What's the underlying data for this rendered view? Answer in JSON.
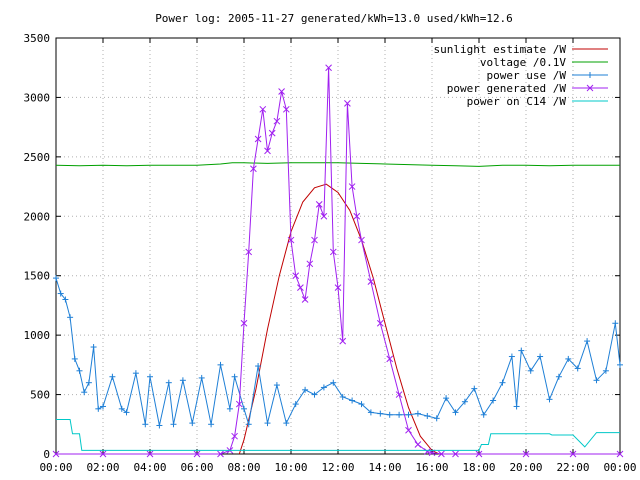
{
  "chart_data": {
    "type": "line",
    "title": "Power log: 2005-11-27 generated/kWh=13.0 used/kWh=12.6",
    "xlabel": "",
    "ylabel": "",
    "xlim": [
      0,
      24
    ],
    "ylim": [
      0,
      3500
    ],
    "grid": true,
    "legend_position": "top-right",
    "x_ticks": [
      {
        "value": 0,
        "label": "00:00"
      },
      {
        "value": 2,
        "label": "02:00"
      },
      {
        "value": 4,
        "label": "04:00"
      },
      {
        "value": 6,
        "label": "06:00"
      },
      {
        "value": 8,
        "label": "08:00"
      },
      {
        "value": 10,
        "label": "10:00"
      },
      {
        "value": 12,
        "label": "12:00"
      },
      {
        "value": 14,
        "label": "14:00"
      },
      {
        "value": 16,
        "label": "16:00"
      },
      {
        "value": 18,
        "label": "18:00"
      },
      {
        "value": 20,
        "label": "20:00"
      },
      {
        "value": 22,
        "label": "22:00"
      },
      {
        "value": 24,
        "label": "00:00"
      }
    ],
    "y_ticks": [
      {
        "value": 0,
        "label": "0"
      },
      {
        "value": 500,
        "label": "500"
      },
      {
        "value": 1000,
        "label": "1000"
      },
      {
        "value": 1500,
        "label": "1500"
      },
      {
        "value": 2000,
        "label": "2000"
      },
      {
        "value": 2500,
        "label": "2500"
      },
      {
        "value": 3000,
        "label": "3000"
      },
      {
        "value": 3500,
        "label": "3500"
      }
    ],
    "series": [
      {
        "name": "sunlight estimate /W",
        "color": "#c00000",
        "style": "line",
        "x": [
          7.8,
          8.0,
          8.5,
          9.0,
          9.5,
          10.0,
          10.5,
          11.0,
          11.5,
          12.0,
          12.5,
          13.0,
          13.5,
          14.0,
          14.5,
          15.0,
          15.5,
          16.0,
          16.3
        ],
        "y": [
          0,
          120,
          540,
          1050,
          1500,
          1870,
          2120,
          2240,
          2270,
          2200,
          2050,
          1800,
          1480,
          1100,
          720,
          390,
          150,
          30,
          0
        ]
      },
      {
        "name": "voltage /0.1V",
        "color": "#00a000",
        "style": "line",
        "x": [
          0,
          1,
          2,
          3,
          4,
          5,
          6,
          7,
          7.5,
          8,
          9,
          10,
          11,
          12,
          13,
          14,
          15,
          16,
          17,
          18,
          19,
          20,
          21,
          22,
          23,
          24
        ],
        "y": [
          2430,
          2425,
          2430,
          2425,
          2430,
          2430,
          2430,
          2440,
          2450,
          2450,
          2445,
          2450,
          2450,
          2450,
          2445,
          2440,
          2435,
          2430,
          2425,
          2420,
          2430,
          2430,
          2425,
          2430,
          2430,
          2430
        ]
      },
      {
        "name": "power use /W",
        "color": "#1e7fd6",
        "style": "line+plus",
        "x": [
          0,
          0.2,
          0.4,
          0.6,
          0.8,
          1.0,
          1.2,
          1.4,
          1.6,
          1.8,
          2.0,
          2.4,
          2.8,
          3.0,
          3.4,
          3.8,
          4.0,
          4.4,
          4.8,
          5.0,
          5.4,
          5.8,
          6.2,
          6.6,
          7.0,
          7.4,
          7.6,
          8.0,
          8.2,
          8.6,
          9.0,
          9.4,
          9.8,
          10.2,
          10.6,
          11.0,
          11.4,
          11.8,
          12.2,
          12.6,
          13.0,
          13.4,
          13.8,
          14.2,
          14.6,
          15.0,
          15.4,
          15.8,
          16.2,
          16.6,
          17.0,
          17.4,
          17.8,
          18.2,
          18.6,
          19.0,
          19.4,
          19.6,
          19.8,
          20.2,
          20.6,
          21.0,
          21.4,
          21.8,
          22.2,
          22.6,
          23.0,
          23.4,
          23.8,
          24.0
        ],
        "y": [
          1480,
          1350,
          1300,
          1150,
          800,
          700,
          520,
          600,
          900,
          380,
          400,
          650,
          380,
          350,
          680,
          250,
          650,
          240,
          600,
          250,
          620,
          260,
          640,
          250,
          750,
          380,
          650,
          380,
          250,
          740,
          260,
          580,
          260,
          420,
          540,
          500,
          560,
          600,
          480,
          450,
          420,
          350,
          340,
          330,
          330,
          330,
          340,
          320,
          300,
          470,
          350,
          440,
          550,
          330,
          450,
          600,
          820,
          400,
          870,
          700,
          820,
          460,
          650,
          800,
          720,
          950,
          620,
          700,
          1100,
          750
        ]
      },
      {
        "name": "power generated /W",
        "color": "#a020f0",
        "style": "line+cross",
        "x": [
          0,
          2,
          4,
          6,
          7.0,
          7.4,
          7.6,
          7.8,
          8.0,
          8.2,
          8.4,
          8.6,
          8.8,
          9.0,
          9.2,
          9.4,
          9.6,
          9.8,
          10.0,
          10.2,
          10.4,
          10.6,
          10.8,
          11.0,
          11.2,
          11.4,
          11.6,
          11.8,
          12.0,
          12.2,
          12.4,
          12.6,
          12.8,
          13.0,
          13.4,
          13.8,
          14.2,
          14.6,
          15.0,
          15.4,
          15.8,
          16.0,
          16.4,
          17.0,
          18.0,
          20.0,
          22.0,
          24.0
        ],
        "y": [
          0,
          0,
          0,
          0,
          0,
          30,
          150,
          420,
          1100,
          1700,
          2400,
          2650,
          2900,
          2550,
          2700,
          2800,
          3050,
          2900,
          1800,
          1500,
          1400,
          1300,
          1600,
          1800,
          2100,
          2000,
          3250,
          1700,
          1400,
          950,
          2950,
          2250,
          2000,
          1800,
          1450,
          1100,
          800,
          500,
          200,
          80,
          20,
          10,
          0,
          0,
          0,
          0,
          0,
          0
        ]
      },
      {
        "name": "power on C14 /W",
        "color": "#00c8c8",
        "style": "line",
        "x": [
          0,
          0.6,
          0.7,
          1.0,
          1.1,
          2.0,
          6.0,
          7.5,
          8.0,
          12.0,
          16.0,
          18.0,
          18.1,
          18.4,
          18.5,
          21.0,
          21.1,
          22.0,
          22.5,
          23.0,
          23.1,
          24.0
        ],
        "y": [
          290,
          290,
          170,
          170,
          30,
          30,
          30,
          30,
          30,
          30,
          30,
          30,
          80,
          80,
          170,
          170,
          160,
          160,
          60,
          180,
          180,
          180
        ]
      }
    ]
  }
}
